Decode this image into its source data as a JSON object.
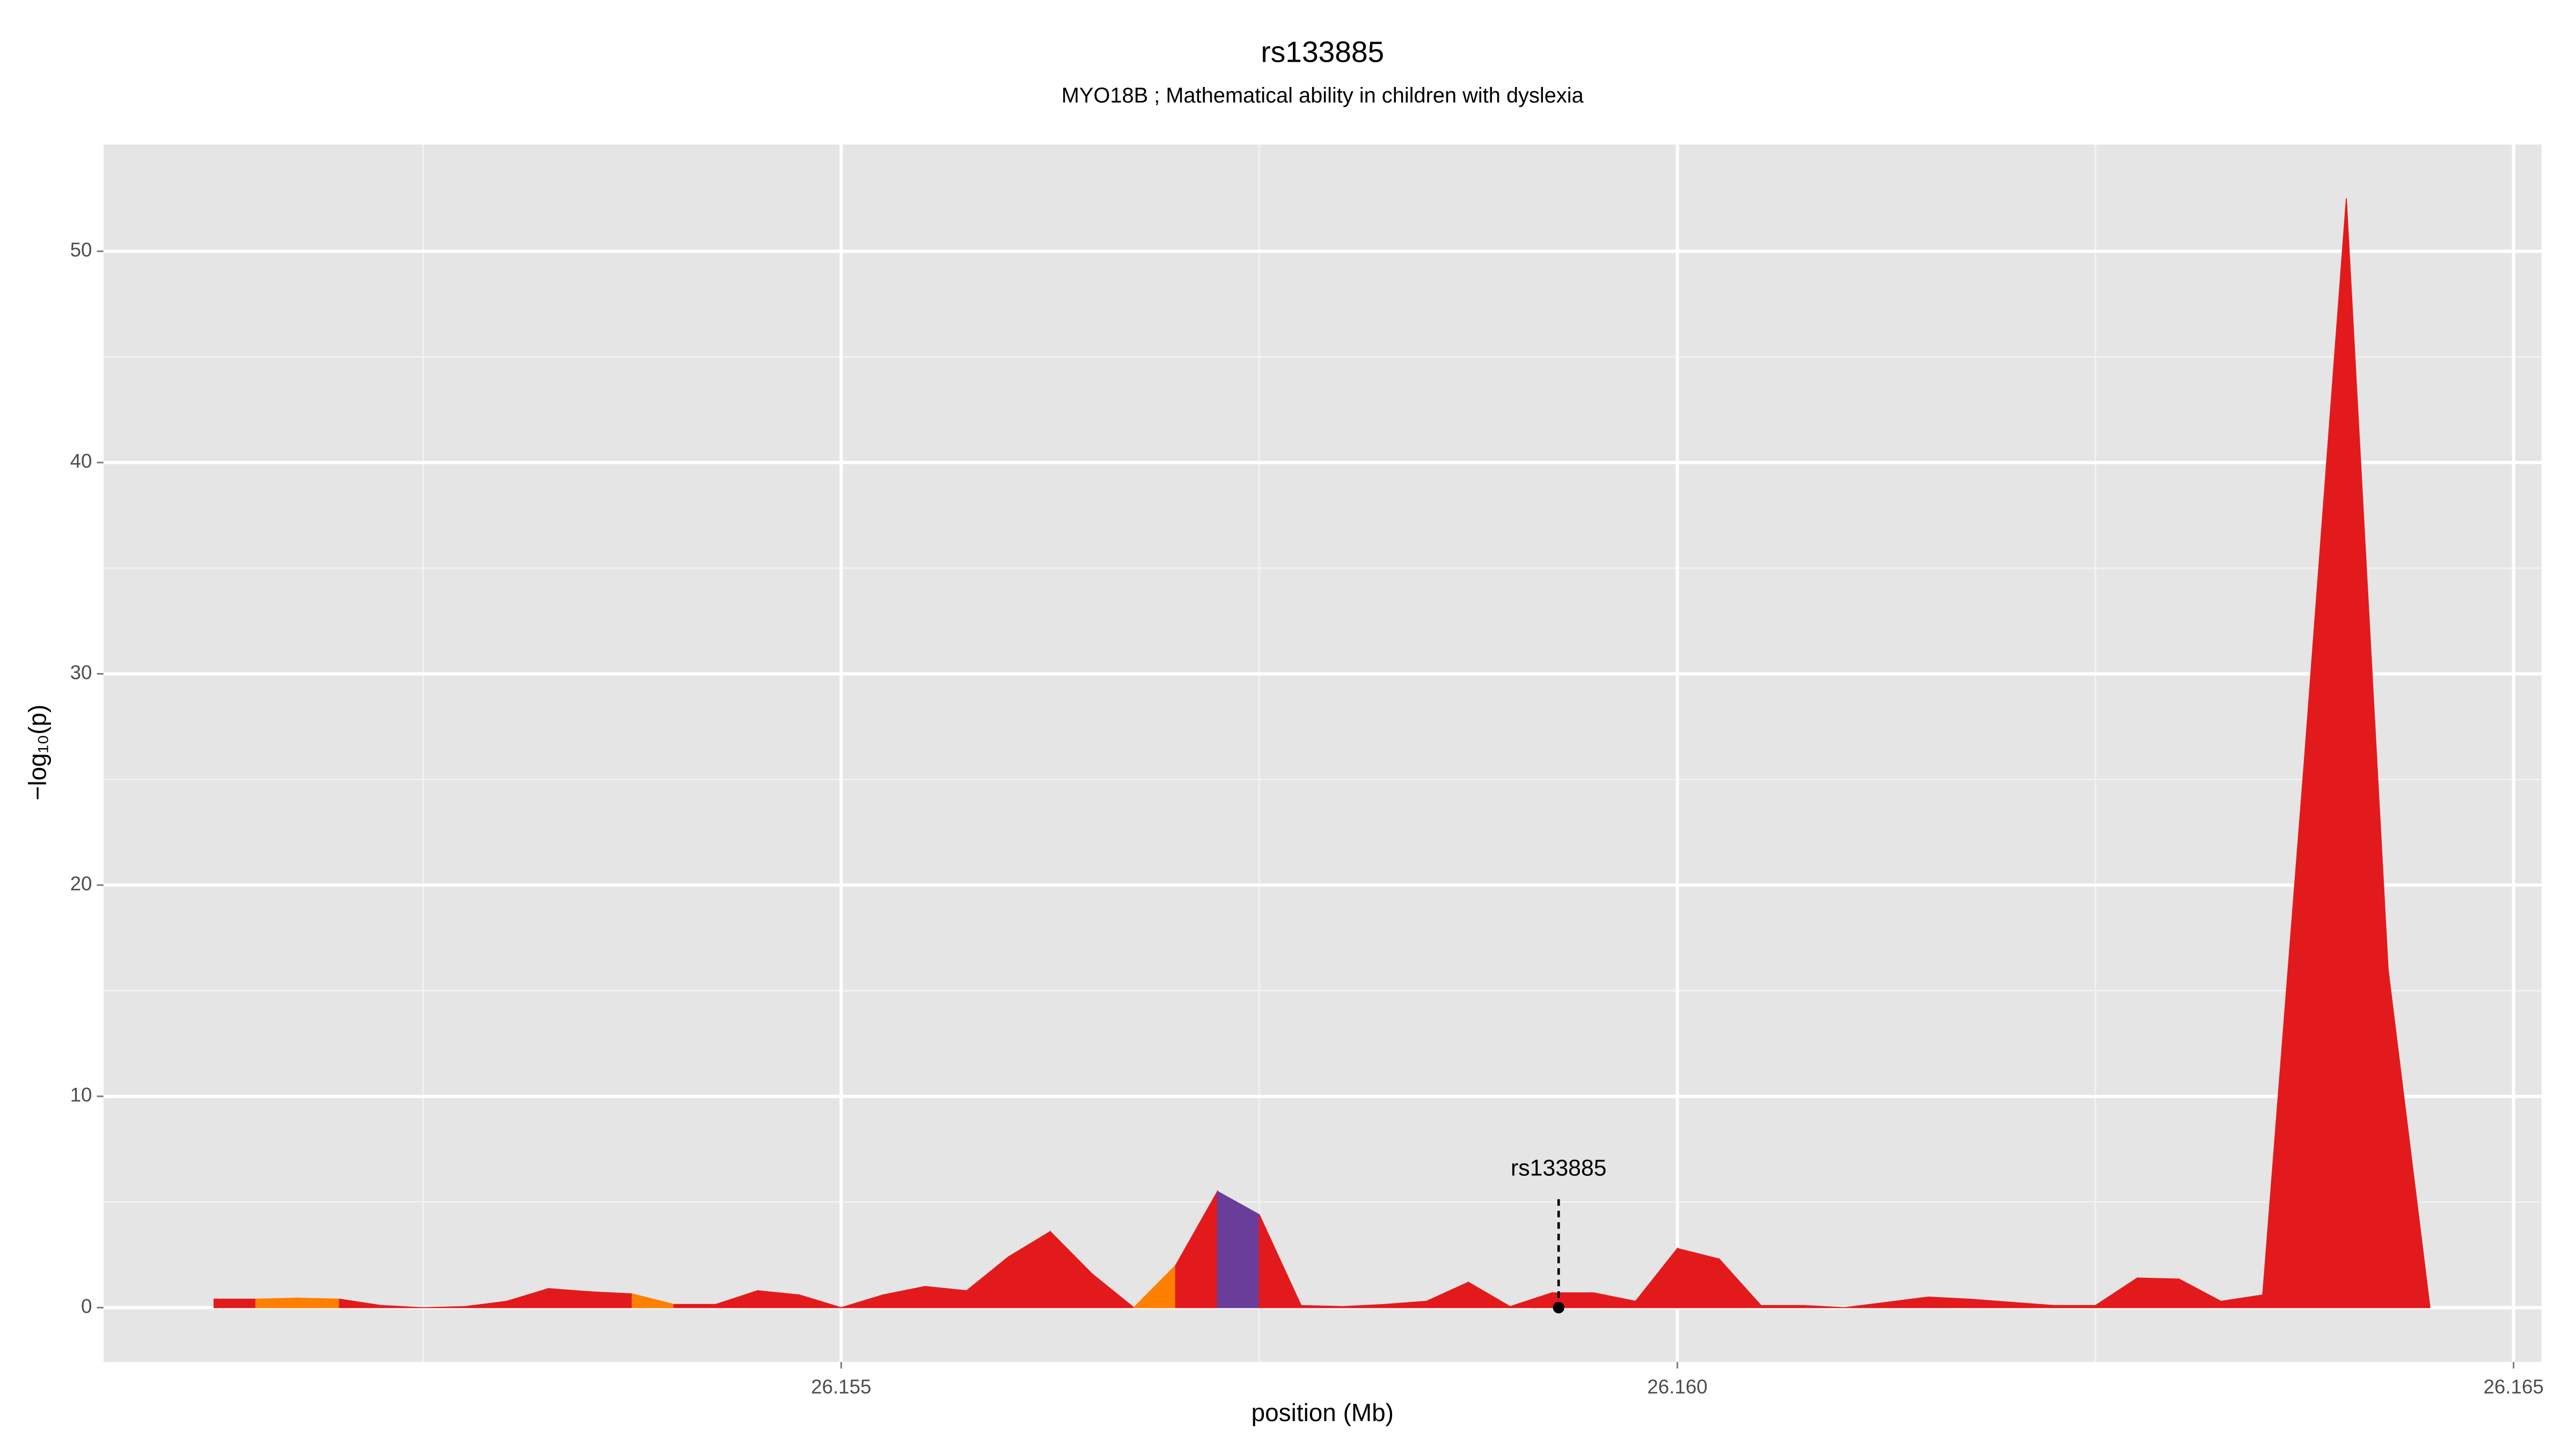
{
  "chart_data": {
    "type": "area",
    "title": "rs133885",
    "subtitle": "MYO18B ; Mathematical ability in children with dyslexia",
    "xlabel": "position (Mb)",
    "ylabel": "−log₁₀(p)",
    "x": [
      26.15125,
      26.1515,
      26.15175,
      26.152,
      26.15225,
      26.1525,
      26.15275,
      26.153,
      26.15325,
      26.1535,
      26.15375,
      26.154,
      26.15425,
      26.1545,
      26.15475,
      26.155,
      26.15525,
      26.1555,
      26.15575,
      26.156,
      26.15625,
      26.1565,
      26.15675,
      26.157,
      26.15725,
      26.1575,
      26.15775,
      26.158,
      26.15825,
      26.1585,
      26.15875,
      26.159,
      26.15925,
      26.1595,
      26.15975,
      26.16,
      26.16025,
      26.1605,
      26.16075,
      26.161,
      26.16125,
      26.1615,
      26.16175,
      26.162,
      26.16225,
      26.1625,
      26.16275,
      26.163,
      26.16325,
      26.1635,
      26.16375,
      26.164,
      26.16425,
      26.1645
    ],
    "values": [
      0.4,
      0.4,
      0.45,
      0.4,
      0.1,
      0,
      0.05,
      0.3,
      0.9,
      0.75,
      0.65,
      0.15,
      0.15,
      0.8,
      0.6,
      0,
      0.6,
      1,
      0.8,
      2.4,
      3.6,
      1.6,
      0,
      2,
      5.5,
      4.4,
      0.1,
      0.05,
      0.15,
      0.3,
      1.2,
      0.05,
      0.7,
      0.7,
      0.3,
      2.8,
      2.3,
      0.1,
      0.1,
      0,
      0.25,
      0.5,
      0.4,
      0.25,
      0.1,
      0.1,
      1.4,
      1.35,
      0.3,
      0.6,
      26,
      52.5,
      16,
      0
    ],
    "segment_colors": [
      "#e31a1c",
      "#ff7f00",
      "#ff7f00",
      "#e31a1c",
      "#e31a1c",
      "#e31a1c",
      "#e31a1c",
      "#e31a1c",
      "#e31a1c",
      "#e31a1c",
      "#ff7f00",
      "#e31a1c",
      "#e31a1c",
      "#e31a1c",
      "#e31a1c",
      "#e31a1c",
      "#e31a1c",
      "#e31a1c",
      "#e31a1c",
      "#e31a1c",
      "#e31a1c",
      "#e31a1c",
      "#ff7f00",
      "#e31a1c",
      "#6a3d9a",
      "#e31a1c",
      "#e31a1c",
      "#e31a1c",
      "#e31a1c",
      "#e31a1c",
      "#e31a1c",
      "#e31a1c",
      "#e31a1c",
      "#e31a1c",
      "#e31a1c",
      "#e31a1c",
      "#e31a1c",
      "#e31a1c",
      "#e31a1c",
      "#e31a1c",
      "#e31a1c",
      "#e31a1c",
      "#e31a1c",
      "#e31a1c",
      "#e31a1c",
      "#e31a1c",
      "#e31a1c",
      "#e31a1c",
      "#e31a1c",
      "#e31a1c",
      "#e31a1c",
      "#e31a1c",
      "#e31a1c"
    ],
    "annotations": [
      {
        "text": "rs133885",
        "x": 26.15929,
        "y": 0
      }
    ],
    "xlim": [
      26.150589,
      26.165167
    ],
    "xticks": [
      26.155,
      {
        "value": 26.16,
        "label": "26.160"
      },
      26.165
    ],
    "xminor": [
      26.1525,
      26.1575,
      26.1625
    ],
    "ylim": [
      -2.57,
      55.05
    ],
    "yticks": [
      0,
      10,
      20,
      30,
      40,
      50
    ],
    "yminor": [
      5,
      15,
      25,
      35,
      45
    ],
    "grid": true
  }
}
